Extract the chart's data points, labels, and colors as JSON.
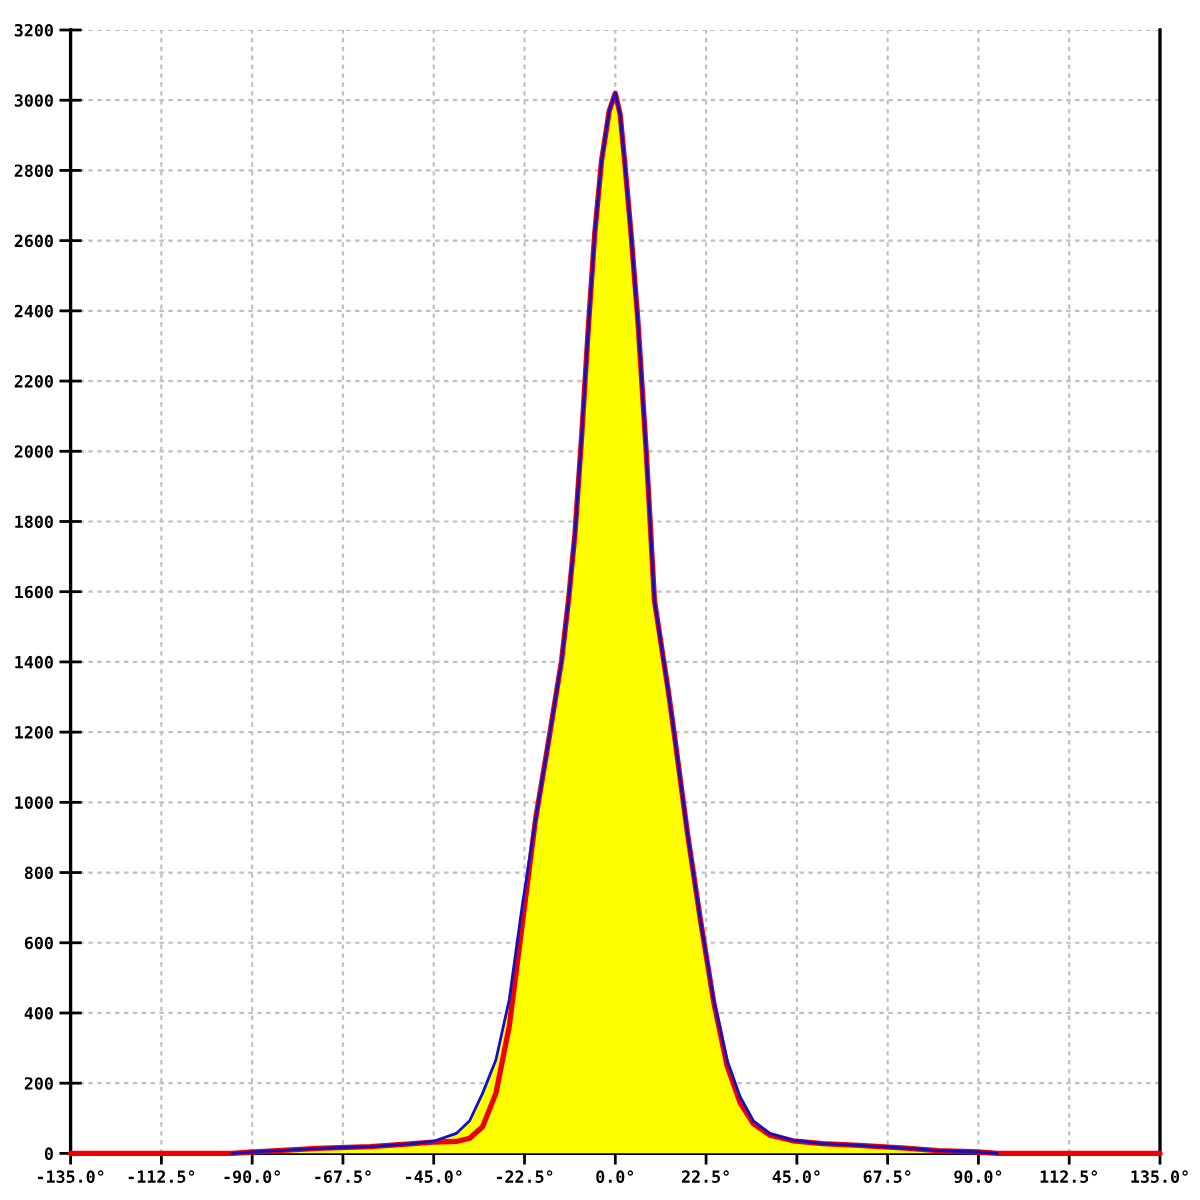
{
  "chart_data": {
    "type": "line",
    "series": [
      {
        "type": "area",
        "color": "#ffff00",
        "x": [
          -90,
          -83.6,
          -73.8,
          -60.7,
          -50.9,
          -45.2,
          -39.4,
          -36.1,
          -32.9,
          -29.6,
          -26.3,
          -23.1,
          -19.8,
          -16.5,
          -13.3,
          -11.6,
          -10,
          -8.3,
          -6.7,
          -5.1,
          -3.4,
          -1.5,
          0,
          1.2,
          2.3,
          3.9,
          5.6,
          7.7,
          9.7,
          12.1,
          13.1,
          14.6,
          17.9,
          21.1,
          24.4,
          27.7,
          30.9,
          34.2,
          38.3,
          44,
          51.4,
          60.4,
          71.9,
          80,
          90
        ],
        "values": [
          4,
          8,
          14,
          19,
          27,
          34,
          57,
          93,
          171,
          266,
          437,
          703,
          949,
          1177,
          1405,
          1576,
          1765,
          2050,
          2350,
          2620,
          2828,
          2970,
          3020,
          2960,
          2828,
          2620,
          2372,
          1993,
          1576,
          1395,
          1320,
          1196,
          911,
          665,
          437,
          266,
          162,
          93,
          57,
          38,
          28,
          23,
          15,
          8,
          4
        ]
      },
      {
        "color": "#ee0000",
        "x": [
          -135,
          -95,
          -90,
          -83.6,
          -73.8,
          -60.7,
          -50.9,
          -45.2,
          -39.4,
          -36.1,
          -32.9,
          -29.6,
          -26.3,
          -23.1,
          -19.8,
          -16.5,
          -13.3,
          -11.6,
          -10,
          -8.3,
          -6.7,
          -5.1,
          -3.4,
          -1.5,
          0,
          1.2,
          2.3,
          3.9,
          5.6,
          7.7,
          9.7,
          12.1,
          13.1,
          14.6,
          17.9,
          21.1,
          24.4,
          27.7,
          30.9,
          34.2,
          38.3,
          44,
          51.4,
          60.4,
          71.9,
          80,
          90,
          94.7,
          135
        ],
        "values": [
          0,
          0,
          4,
          8,
          14,
          19,
          27,
          32,
          34,
          43,
          76,
          171,
          361,
          650,
          949,
          1177,
          1405,
          1576,
          1765,
          2050,
          2350,
          2620,
          2828,
          2970,
          3020,
          2960,
          2828,
          2620,
          2372,
          1993,
          1576,
          1395,
          1320,
          1196,
          911,
          665,
          430,
          250,
          145,
          85,
          52,
          36,
          28,
          23,
          15,
          8,
          4,
          0,
          0
        ]
      },
      {
        "color": "#1010c8",
        "x": [
          -95,
          -90,
          -83.6,
          -73.8,
          -60.7,
          -50.9,
          -45.2,
          -39.4,
          -36.1,
          -32.9,
          -29.6,
          -26.3,
          -23.1,
          -19.8,
          -16.5,
          -13.3,
          -11.6,
          -10,
          -8.3,
          -6.7,
          -5.1,
          -3.4,
          -1.5,
          0,
          1.2,
          2.3,
          3.9,
          5.6,
          7.7,
          9.7,
          12.1,
          13.1,
          14.6,
          17.9,
          21.1,
          24.4,
          27.7,
          30.9,
          34.2,
          38.3,
          44,
          51.4,
          60.4,
          71.9,
          80,
          90,
          94.7
        ],
        "values": [
          0,
          4,
          8,
          14,
          19,
          27,
          34,
          57,
          93,
          171,
          266,
          437,
          703,
          949,
          1177,
          1405,
          1576,
          1765,
          2050,
          2350,
          2620,
          2828,
          2970,
          3020,
          2960,
          2828,
          2620,
          2372,
          1993,
          1576,
          1395,
          1320,
          1196,
          911,
          665,
          437,
          266,
          162,
          93,
          57,
          38,
          28,
          23,
          15,
          8,
          4,
          0
        ]
      }
    ],
    "xlim": [
      -135,
      135
    ],
    "xticks": [
      {
        "value": -135,
        "label": "-135.0°"
      },
      {
        "value": -112.5,
        "label": "-112.5°"
      },
      {
        "value": -90,
        "label": "-90.0°"
      },
      {
        "value": -67.5,
        "label": "-67.5°"
      },
      {
        "value": -45,
        "label": "-45.0°"
      },
      {
        "value": -22.5,
        "label": "-22.5°"
      },
      {
        "value": 0,
        "label": "0.0°"
      },
      {
        "value": 22.5,
        "label": "22.5°"
      },
      {
        "value": 45,
        "label": "45.0°"
      },
      {
        "value": 67.5,
        "label": "67.5°"
      },
      {
        "value": 90,
        "label": "90.0°"
      },
      {
        "value": 112.5,
        "label": "112.5°"
      },
      {
        "value": 135,
        "label": "135.0°"
      }
    ],
    "ylim": [
      0,
      3200
    ],
    "yticks": [
      0,
      200,
      400,
      600,
      800,
      1000,
      1200,
      1400,
      1600,
      1800,
      2000,
      2200,
      2400,
      2600,
      2800,
      3000,
      3200
    ],
    "grid": true,
    "marker": "none",
    "line_style": "solid"
  }
}
